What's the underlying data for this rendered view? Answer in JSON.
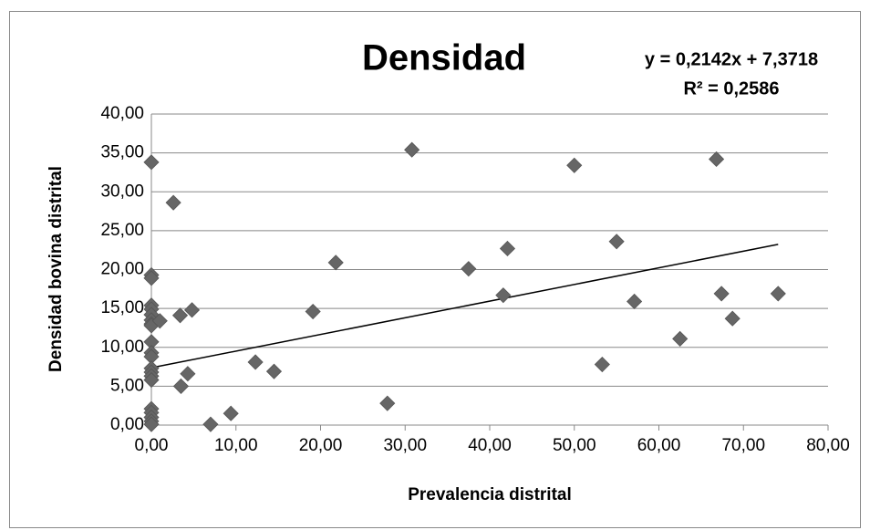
{
  "chart_data": {
    "type": "scatter",
    "title": "Densidad",
    "annotations": [
      "y = 0,2142x + 7,3718",
      "R² = 0,2586"
    ],
    "x_label": "Prevalencia distrital",
    "y_label": "Densidad bovina distrital",
    "color": "#666666",
    "grid": true,
    "trendline": {
      "slope": 0.2142,
      "intercept": 7.3718
    },
    "xlim": [
      0,
      80
    ],
    "ylim": [
      0,
      40
    ],
    "xticks": [
      {
        "value": 0,
        "label": "0,00"
      },
      {
        "value": 10,
        "label": "10,00"
      },
      {
        "value": 20,
        "label": "20,00"
      },
      {
        "value": 30,
        "label": "30,00"
      },
      {
        "value": 40,
        "label": "40,00"
      },
      {
        "value": 50,
        "label": "50,00"
      },
      {
        "value": 60,
        "label": "60,00"
      },
      {
        "value": 70,
        "label": "70,00"
      },
      {
        "value": 80,
        "label": "80,00"
      }
    ],
    "yticks": [
      {
        "value": 0,
        "label": "0,00"
      },
      {
        "value": 5,
        "label": "5,00"
      },
      {
        "value": 10,
        "label": "10,00"
      },
      {
        "value": 15,
        "label": "15,00"
      },
      {
        "value": 20,
        "label": "20,00"
      },
      {
        "value": 25,
        "label": "25,00"
      },
      {
        "value": 30,
        "label": "30,00"
      },
      {
        "value": 35,
        "label": "35,00"
      },
      {
        "value": 40,
        "label": "40,00"
      }
    ],
    "x": [
      0,
      0,
      0,
      0,
      0,
      0,
      0,
      0,
      0,
      0,
      0,
      0,
      0,
      0,
      0,
      0,
      0,
      0,
      0,
      0,
      0,
      1.0,
      2.6,
      3.4,
      3.5,
      4.3,
      4.8,
      7.0,
      9.4,
      12.3,
      14.5,
      19.1,
      21.8,
      27.9,
      30.8,
      37.5,
      41.6,
      42.1,
      50.0,
      53.3,
      55.0,
      57.1,
      62.5,
      66.8,
      67.4,
      68.7,
      74.1
    ],
    "values": [
      33.8,
      19.3,
      18.9,
      15.4,
      14.9,
      14.2,
      13.5,
      13.0,
      12.8,
      10.7,
      9.3,
      8.8,
      7.3,
      6.8,
      6.3,
      5.8,
      2.1,
      1.6,
      1.0,
      0.5,
      0.1,
      13.4,
      28.6,
      14.1,
      5.0,
      6.6,
      14.8,
      0.1,
      1.5,
      8.1,
      6.9,
      14.6,
      20.9,
      2.8,
      35.4,
      20.1,
      16.7,
      22.7,
      33.4,
      7.8,
      23.6,
      15.9,
      11.1,
      34.2,
      16.9,
      13.7,
      16.9
    ]
  }
}
